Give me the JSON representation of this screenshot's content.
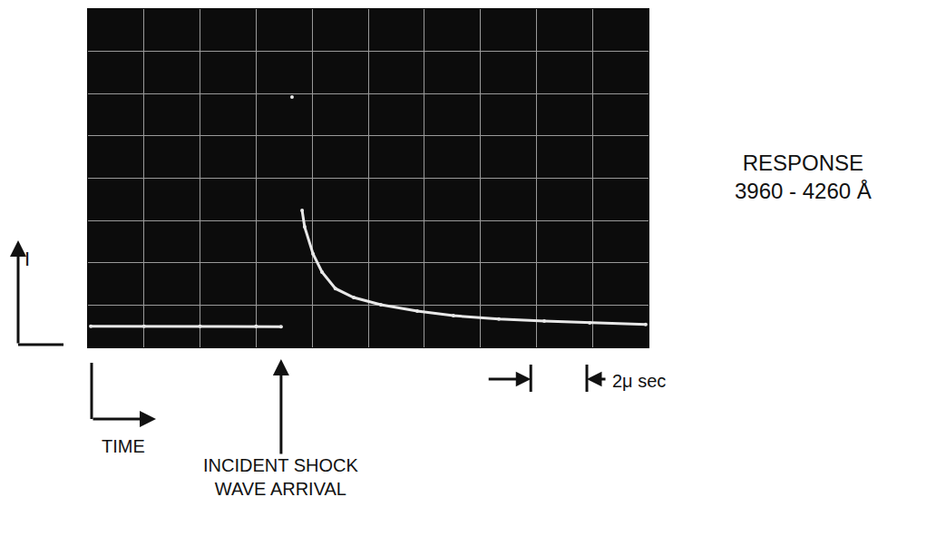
{
  "chart_data": {
    "type": "line",
    "x": [
      0.1,
      2.0,
      4.0,
      6.0,
      6.89,
      null,
      7.28,
      null,
      7.64,
      7.73,
      8.03,
      8.35,
      8.83,
      9.48,
      10.45,
      11.75,
      13.04,
      14.66,
      16.28,
      17.9,
      19.9
    ],
    "values": [
      0.5,
      0.5,
      0.5,
      0.5,
      0.49,
      null,
      5.92,
      null,
      3.24,
      2.85,
      2.21,
      1.78,
      1.39,
      1.18,
      1.01,
      0.86,
      0.75,
      0.67,
      0.62,
      0.58,
      0.54
    ],
    "color": "#e8e8e8",
    "marker": "circle",
    "line_style": "solid",
    "xlim": [
      0,
      20
    ],
    "xticks": [
      0,
      2,
      4,
      6,
      8,
      10,
      12,
      14,
      16,
      18,
      20
    ],
    "ylim": [
      0,
      8
    ],
    "yticks": [
      0,
      1,
      2,
      3,
      4,
      5,
      6,
      7,
      8
    ],
    "grid": true,
    "tick_labels": false,
    "annotations": {
      "y_label": "I",
      "x_label": "TIME",
      "event": {
        "lines": [
          "INCIDENT SHOCK",
          "WAVE ARRIVAL"
        ],
        "x": 6.89
      },
      "response": [
        "RESPONSE",
        "3960 - 4260 Å"
      ]
    },
    "scale_bar": {
      "start": 15.8,
      "length": 2,
      "label": "2μ sec"
    }
  }
}
